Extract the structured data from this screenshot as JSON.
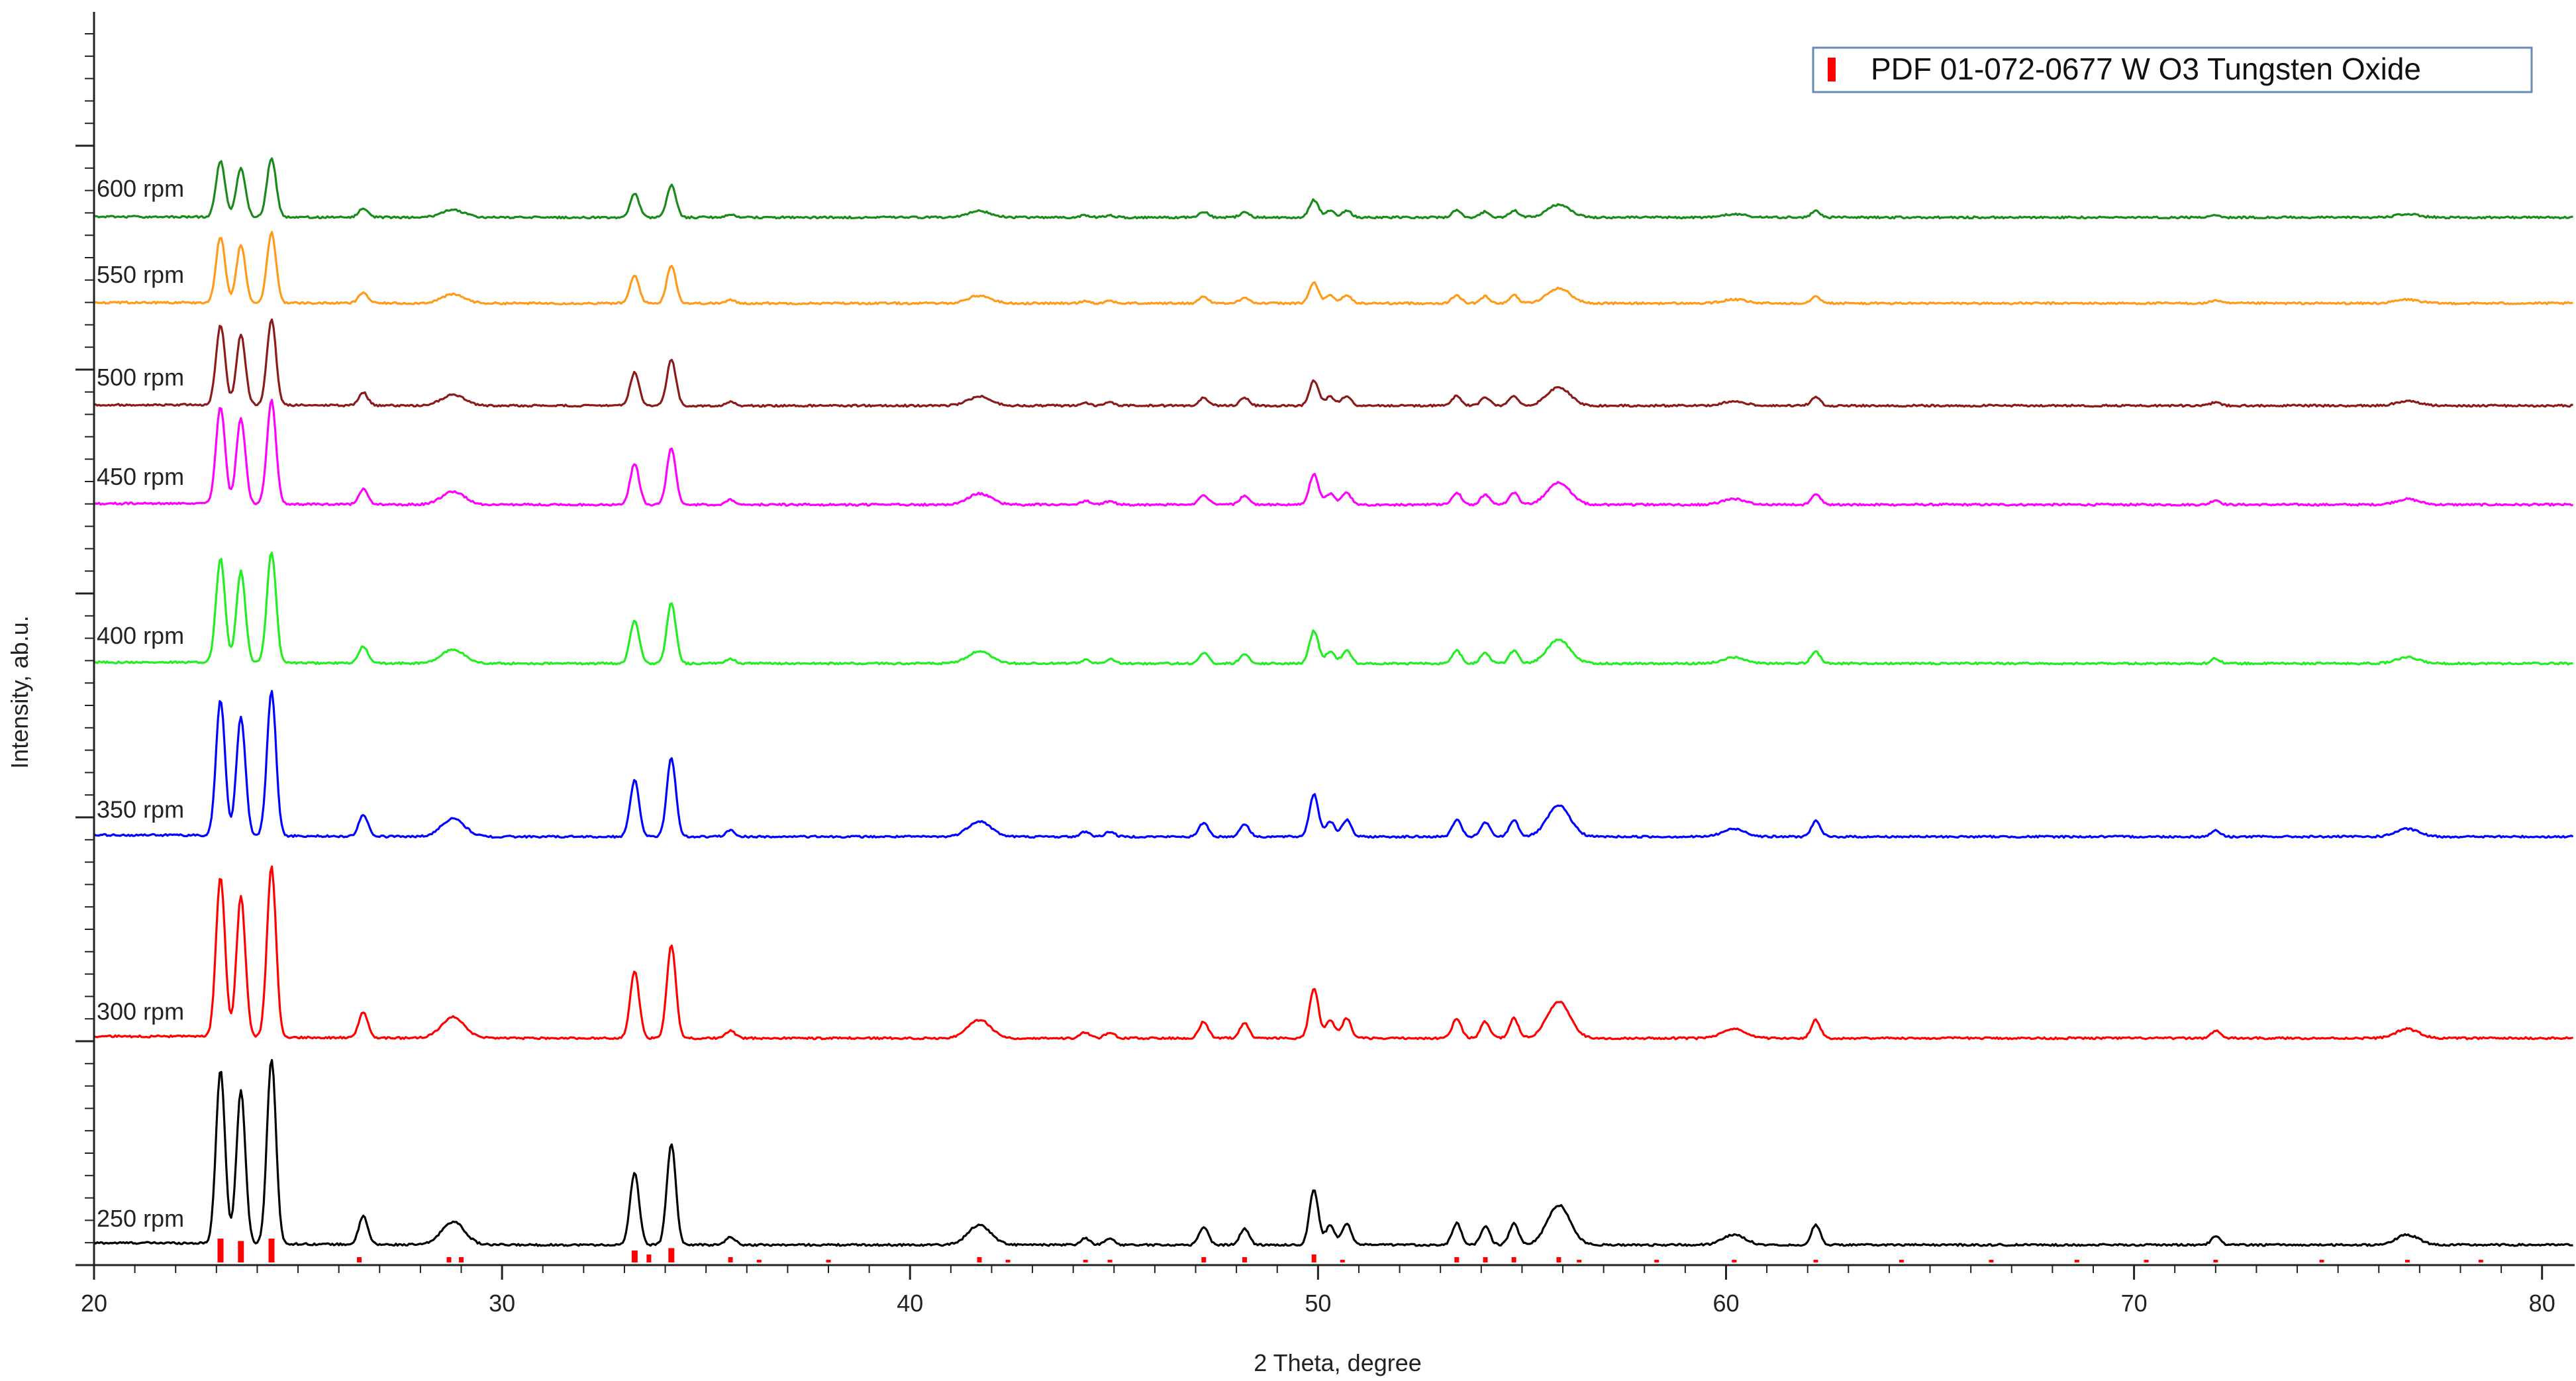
{
  "chart_data": {
    "type": "line",
    "title": "",
    "xlabel": "2 Theta, degree",
    "ylabel": "Intensity, ab.u.",
    "xlim": [
      20,
      80.8
    ],
    "x_ticks": [
      20,
      30,
      40,
      50,
      60,
      70,
      80
    ],
    "y_ticks_labeled": false,
    "grid": false,
    "legend": {
      "position": "top-right",
      "entries": [
        "PDF 01-072-0677 W O3 Tungsten Oxide"
      ]
    },
    "peak_positions_2theta": [
      23.1,
      23.6,
      24.35,
      26.6,
      28.8,
      33.25,
      34.15,
      35.6,
      41.7,
      44.3,
      44.9,
      47.2,
      48.2,
      49.9,
      50.3,
      50.7,
      53.4,
      54.1,
      54.8,
      55.9,
      60.2,
      62.2,
      72.0,
      76.7
    ],
    "series": [
      {
        "name": "250 rpm",
        "color": "#000000",
        "offset": 0.0,
        "scale": 1.0,
        "peak_heights": [
          105,
          92,
          112,
          17,
          14,
          44,
          61,
          5,
          12,
          4,
          4,
          11,
          10,
          33,
          12,
          13,
          13,
          11,
          13,
          24,
          6,
          12,
          5,
          6
        ]
      },
      {
        "name": "300 rpm",
        "color": "#ff0000",
        "offset": 125.0,
        "scale": 0.92,
        "peak_heights": [
          105,
          92,
          112,
          17,
          14,
          44,
          61,
          5,
          12,
          4,
          4,
          11,
          10,
          33,
          12,
          13,
          13,
          11,
          13,
          24,
          6,
          12,
          5,
          6
        ]
      },
      {
        "name": "350 rpm",
        "color": "#0000ff",
        "offset": 247.0,
        "scale": 0.78,
        "peak_heights": [
          105,
          92,
          112,
          17,
          14,
          44,
          61,
          5,
          12,
          4,
          4,
          11,
          10,
          33,
          12,
          13,
          13,
          11,
          13,
          24,
          6,
          12,
          5,
          6
        ]
      },
      {
        "name": "400 rpm",
        "color": "#22ee22",
        "offset": 352.0,
        "scale": 0.6,
        "peak_heights": [
          105,
          92,
          112,
          17,
          14,
          44,
          61,
          5,
          12,
          4,
          4,
          11,
          10,
          33,
          12,
          13,
          13,
          11,
          13,
          24,
          6,
          12,
          5,
          6
        ]
      },
      {
        "name": "450 rpm",
        "color": "#ff00ff",
        "offset": 448.0,
        "scale": 0.56,
        "peak_heights": [
          105,
          92,
          112,
          17,
          14,
          44,
          61,
          5,
          12,
          4,
          4,
          11,
          10,
          33,
          12,
          13,
          13,
          11,
          13,
          24,
          6,
          12,
          5,
          6
        ]
      },
      {
        "name": "500 rpm",
        "color": "#8b1a1a",
        "offset": 508.0,
        "scale": 0.46,
        "peak_heights": [
          105,
          92,
          112,
          17,
          14,
          44,
          61,
          5,
          12,
          4,
          4,
          11,
          10,
          33,
          12,
          13,
          13,
          11,
          13,
          24,
          6,
          12,
          5,
          6
        ]
      },
      {
        "name": "550 rpm",
        "color": "#ff9a1a",
        "offset": 570.0,
        "scale": 0.38,
        "peak_heights": [
          105,
          92,
          112,
          17,
          14,
          44,
          61,
          5,
          12,
          4,
          4,
          11,
          10,
          33,
          12,
          13,
          13,
          11,
          13,
          24,
          6,
          12,
          5,
          6
        ]
      },
      {
        "name": "600 rpm",
        "color": "#1a8a1a",
        "offset": 622.0,
        "scale": 0.32,
        "peak_heights": [
          105,
          92,
          112,
          17,
          14,
          44,
          61,
          5,
          12,
          4,
          4,
          11,
          10,
          33,
          12,
          13,
          13,
          11,
          13,
          24,
          6,
          12,
          5,
          6
        ]
      }
    ],
    "reference_pattern": {
      "name": "PDF 01-072-0677 W O3 Tungsten Oxide",
      "color": "#ff0000",
      "sticks": [
        {
          "x": 23.1,
          "h": 10
        },
        {
          "x": 23.6,
          "h": 9
        },
        {
          "x": 24.35,
          "h": 10
        },
        {
          "x": 26.5,
          "h": 2
        },
        {
          "x": 28.7,
          "h": 2
        },
        {
          "x": 29.0,
          "h": 2
        },
        {
          "x": 33.25,
          "h": 5
        },
        {
          "x": 33.6,
          "h": 3
        },
        {
          "x": 34.15,
          "h": 6
        },
        {
          "x": 35.6,
          "h": 2
        },
        {
          "x": 36.3,
          "h": 1
        },
        {
          "x": 38.0,
          "h": 1
        },
        {
          "x": 41.7,
          "h": 2
        },
        {
          "x": 42.4,
          "h": 1
        },
        {
          "x": 44.3,
          "h": 1
        },
        {
          "x": 44.9,
          "h": 1
        },
        {
          "x": 47.2,
          "h": 2
        },
        {
          "x": 48.2,
          "h": 2
        },
        {
          "x": 49.9,
          "h": 3
        },
        {
          "x": 50.6,
          "h": 1
        },
        {
          "x": 53.4,
          "h": 2
        },
        {
          "x": 54.1,
          "h": 2
        },
        {
          "x": 54.8,
          "h": 2
        },
        {
          "x": 55.9,
          "h": 2
        },
        {
          "x": 56.4,
          "h": 1
        },
        {
          "x": 58.3,
          "h": 1
        },
        {
          "x": 60.2,
          "h": 1
        },
        {
          "x": 62.2,
          "h": 1
        },
        {
          "x": 64.3,
          "h": 1
        },
        {
          "x": 66.5,
          "h": 1
        },
        {
          "x": 68.6,
          "h": 1
        },
        {
          "x": 70.3,
          "h": 1
        },
        {
          "x": 72.0,
          "h": 1
        },
        {
          "x": 74.6,
          "h": 1
        },
        {
          "x": 76.7,
          "h": 1
        },
        {
          "x": 78.5,
          "h": 1
        }
      ]
    }
  }
}
